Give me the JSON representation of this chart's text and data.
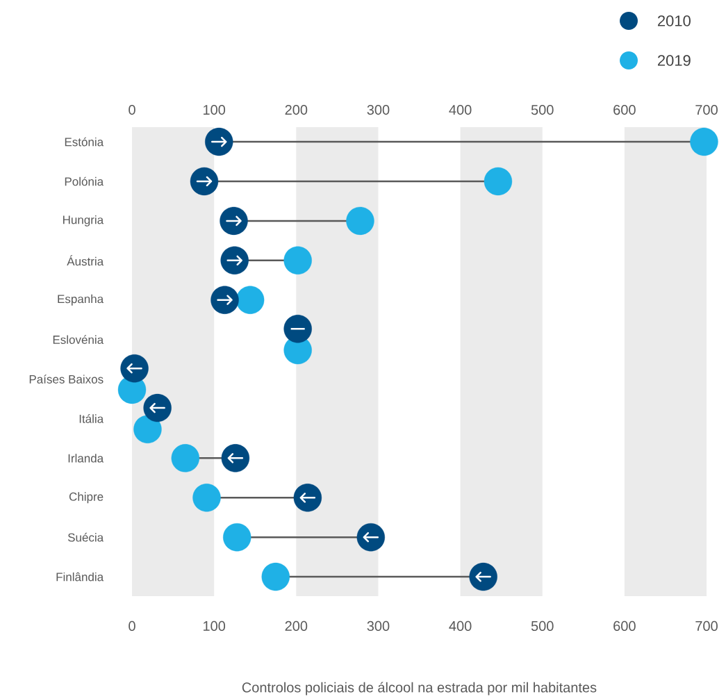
{
  "chart_data": {
    "type": "scatter",
    "orientation": "horizontal",
    "xlabel": "Controlos policiais de álcool na estrada por mil habitantes",
    "categories": [
      "Estónia",
      "Polónia",
      "Hungria",
      "Áustria",
      "Espanha",
      "Eslovénia",
      "Países Baixos",
      "Itália",
      "Irlanda",
      "Chipre",
      "Suécia",
      "Finlândia"
    ],
    "series": [
      {
        "name": "2010",
        "color": "#004a80",
        "values": [
          106,
          88,
          124,
          125,
          113,
          202,
          3,
          31,
          126,
          214,
          291,
          428
        ]
      },
      {
        "name": "2019",
        "color": "#1fb1e6",
        "values": [
          697,
          446,
          278,
          202,
          144,
          202,
          0,
          19,
          65,
          91,
          128,
          175
        ]
      }
    ],
    "xlim": [
      0,
      700
    ],
    "xticks": [
      0,
      100,
      200,
      300,
      400,
      500,
      600,
      700
    ],
    "x2lim": [
      0,
      700
    ],
    "x2ticks": [
      0,
      100,
      200,
      300,
      400,
      500,
      600,
      700
    ],
    "bands": [
      {
        "axis": "x",
        "from": 0,
        "to": 100,
        "color": "#ebebeb"
      },
      {
        "axis": "x",
        "from": 200,
        "to": 300,
        "color": "#ebebeb"
      },
      {
        "axis": "x",
        "from": 400,
        "to": 500,
        "color": "#ebebeb"
      },
      {
        "axis": "x",
        "from": 600,
        "to": 700,
        "color": "#ebebeb"
      }
    ],
    "marker": "circle",
    "legend": "top right"
  }
}
